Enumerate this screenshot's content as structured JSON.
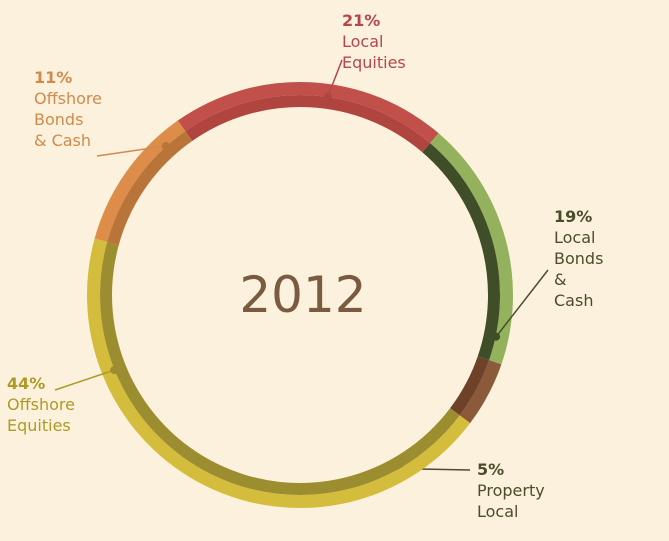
{
  "chart_data": {
    "type": "pie",
    "variant": "donut",
    "center_label": "2012",
    "slices": [
      {
        "label": "Local Equities",
        "label_lines": "Local Equities",
        "value": 21,
        "value_label": "21%",
        "color": "#c14f4a",
        "inner_color": "#b0453f",
        "label_color": "#b4474a"
      },
      {
        "label": "Local Bonds & Cash",
        "label_lines": "Local Bonds\n& Cash",
        "value": 19,
        "value_label": "19%",
        "color": "#94b25e",
        "inner_color": "#3f4e28",
        "label_color": "#4a4d2a"
      },
      {
        "label": "Property Local",
        "label_lines": "Property\nLocal",
        "value": 5,
        "value_label": "5%",
        "color": "#8b5a3a",
        "inner_color": "#6d4229",
        "label_color": "#4a4d2a"
      },
      {
        "label": "Offshore Equities",
        "label_lines": "Offshore\nEquities",
        "value": 44,
        "value_label": "44%",
        "color": "#d4bd3c",
        "inner_color": "#9c8e30",
        "label_color": "#ad9a26"
      },
      {
        "label": "Offshore Bonds & Cash",
        "label_lines": "Offshore\nBonds\n& Cash",
        "value": 11,
        "value_label": "11%",
        "color": "#dd8c4a",
        "inner_color": "#b97439",
        "label_color": "#d18a4c"
      }
    ]
  }
}
